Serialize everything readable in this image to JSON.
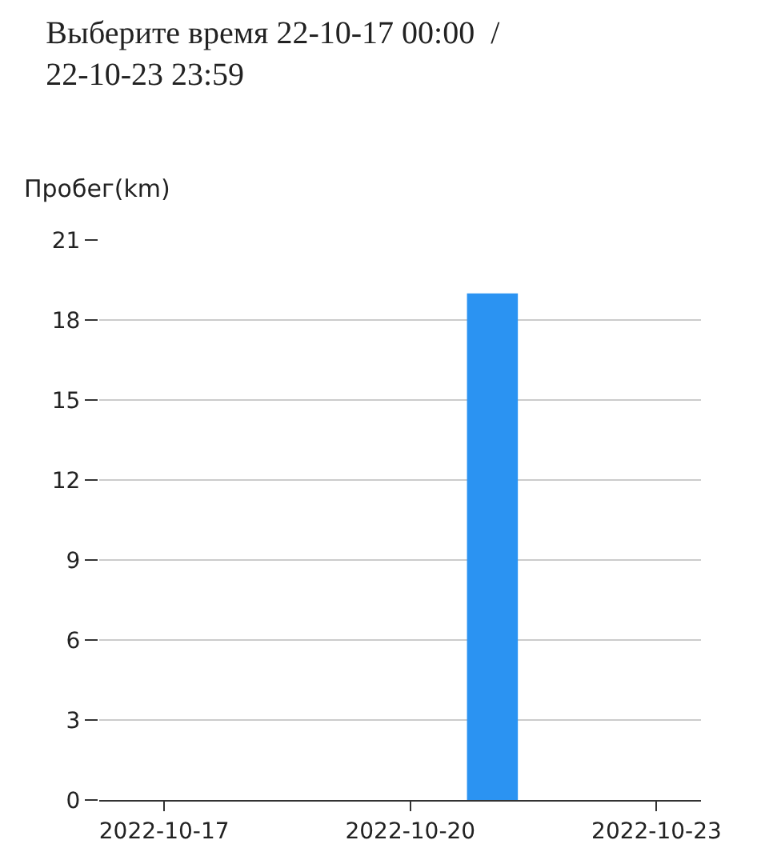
{
  "chart_data": {
    "type": "bar",
    "title": "Выберите время 22-10-17 00:00  /  22-10-23 23:59",
    "ylabel": "Пробег(km)",
    "x": [
      "2022-10-21"
    ],
    "series": [
      {
        "color": "#2b93f2",
        "values": [
          19
        ]
      }
    ],
    "xlim": [
      "2022-10-16T05:00",
      "2022-10-23T13:00"
    ],
    "xticks": [
      {
        "value": "2022-10-17",
        "label": "2022-10-17"
      },
      {
        "value": "2022-10-20",
        "label": "2022-10-20"
      },
      {
        "value": "2022-10-23",
        "label": "2022-10-23"
      }
    ],
    "ylim": [
      0,
      21
    ],
    "yticks": [
      0,
      3,
      6,
      9,
      12,
      15,
      18,
      21
    ],
    "grid": "y",
    "legend": false
  }
}
